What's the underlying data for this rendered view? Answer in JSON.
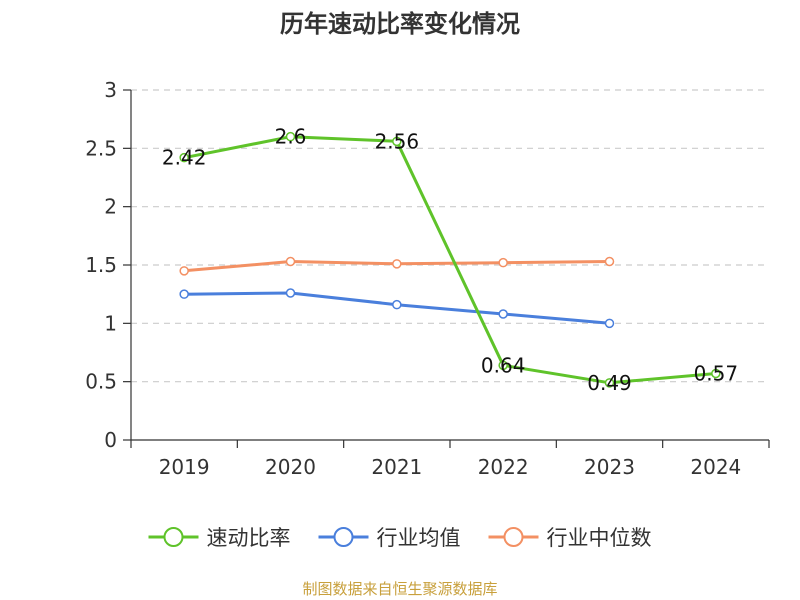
{
  "chart_data": {
    "type": "line",
    "title": "历年速动比率变化情况",
    "categories": [
      "2019",
      "2020",
      "2021",
      "2022",
      "2023",
      "2024"
    ],
    "ylim": [
      0,
      3
    ],
    "yticks": [
      "0",
      "0.5",
      "1",
      "1.5",
      "2",
      "2.5",
      "3"
    ],
    "grid": true,
    "legend_position": "bottom",
    "series": [
      {
        "name": "速动比率",
        "color": "#5fc32a",
        "values": [
          2.42,
          2.6,
          2.56,
          0.64,
          0.49,
          0.57
        ],
        "labels": [
          "2.42",
          "2.6",
          "2.56",
          "0.64",
          "0.49",
          "0.57"
        ]
      },
      {
        "name": "行业均值",
        "color": "#4a7fdc",
        "values": [
          1.25,
          1.26,
          1.16,
          1.08,
          1.0,
          null
        ]
      },
      {
        "name": "行业中位数",
        "color": "#f39063",
        "values": [
          1.45,
          1.53,
          1.51,
          1.52,
          1.53,
          null
        ]
      }
    ]
  },
  "footer": {
    "source": "制图数据来自恒生聚源数据库"
  }
}
